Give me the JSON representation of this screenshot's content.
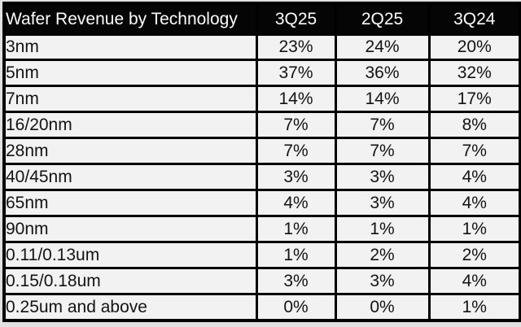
{
  "table": {
    "header": {
      "label_col": "Wafer Revenue by Technology",
      "columns": [
        "3Q25",
        "2Q25",
        "3Q24"
      ]
    },
    "rows": [
      {
        "tech": "3nm",
        "values": [
          "23%",
          "24%",
          "20%"
        ]
      },
      {
        "tech": "5nm",
        "values": [
          "37%",
          "36%",
          "32%"
        ]
      },
      {
        "tech": "7nm",
        "values": [
          "14%",
          "14%",
          "17%"
        ]
      },
      {
        "tech": "16/20nm",
        "values": [
          "7%",
          "7%",
          "8%"
        ]
      },
      {
        "tech": "28nm",
        "values": [
          "7%",
          "7%",
          "7%"
        ]
      },
      {
        "tech": "40/45nm",
        "values": [
          "3%",
          "3%",
          "4%"
        ]
      },
      {
        "tech": "65nm",
        "values": [
          "4%",
          "3%",
          "4%"
        ]
      },
      {
        "tech": "90nm",
        "values": [
          "1%",
          "1%",
          "1%"
        ]
      },
      {
        "tech": "0.11/0.13um",
        "values": [
          "1%",
          "2%",
          "2%"
        ]
      },
      {
        "tech": "0.15/0.18um",
        "values": [
          "3%",
          "3%",
          "4%"
        ]
      },
      {
        "tech": "0.25um and above",
        "values": [
          "0%",
          "0%",
          "1%"
        ]
      }
    ]
  },
  "colors": {
    "header_bg": "#050505",
    "header_text": "#fdfdfd",
    "cell_bg": "#f2f2f2",
    "cell_text": "#131313",
    "border": "#000000",
    "page_bg": "#e1e1e1"
  },
  "chart_data": {
    "type": "table",
    "title": "Wafer Revenue by Technology",
    "categories": [
      "3nm",
      "5nm",
      "7nm",
      "16/20nm",
      "28nm",
      "40/45nm",
      "65nm",
      "90nm",
      "0.11/0.13um",
      "0.15/0.18um",
      "0.25um and above"
    ],
    "series": [
      {
        "name": "3Q25",
        "values": [
          23,
          37,
          14,
          7,
          7,
          3,
          4,
          1,
          1,
          3,
          0
        ]
      },
      {
        "name": "2Q25",
        "values": [
          24,
          36,
          14,
          7,
          7,
          3,
          3,
          1,
          2,
          3,
          0
        ]
      },
      {
        "name": "3Q24",
        "values": [
          20,
          32,
          17,
          8,
          7,
          4,
          4,
          1,
          2,
          4,
          1
        ]
      }
    ],
    "value_unit": "%"
  }
}
